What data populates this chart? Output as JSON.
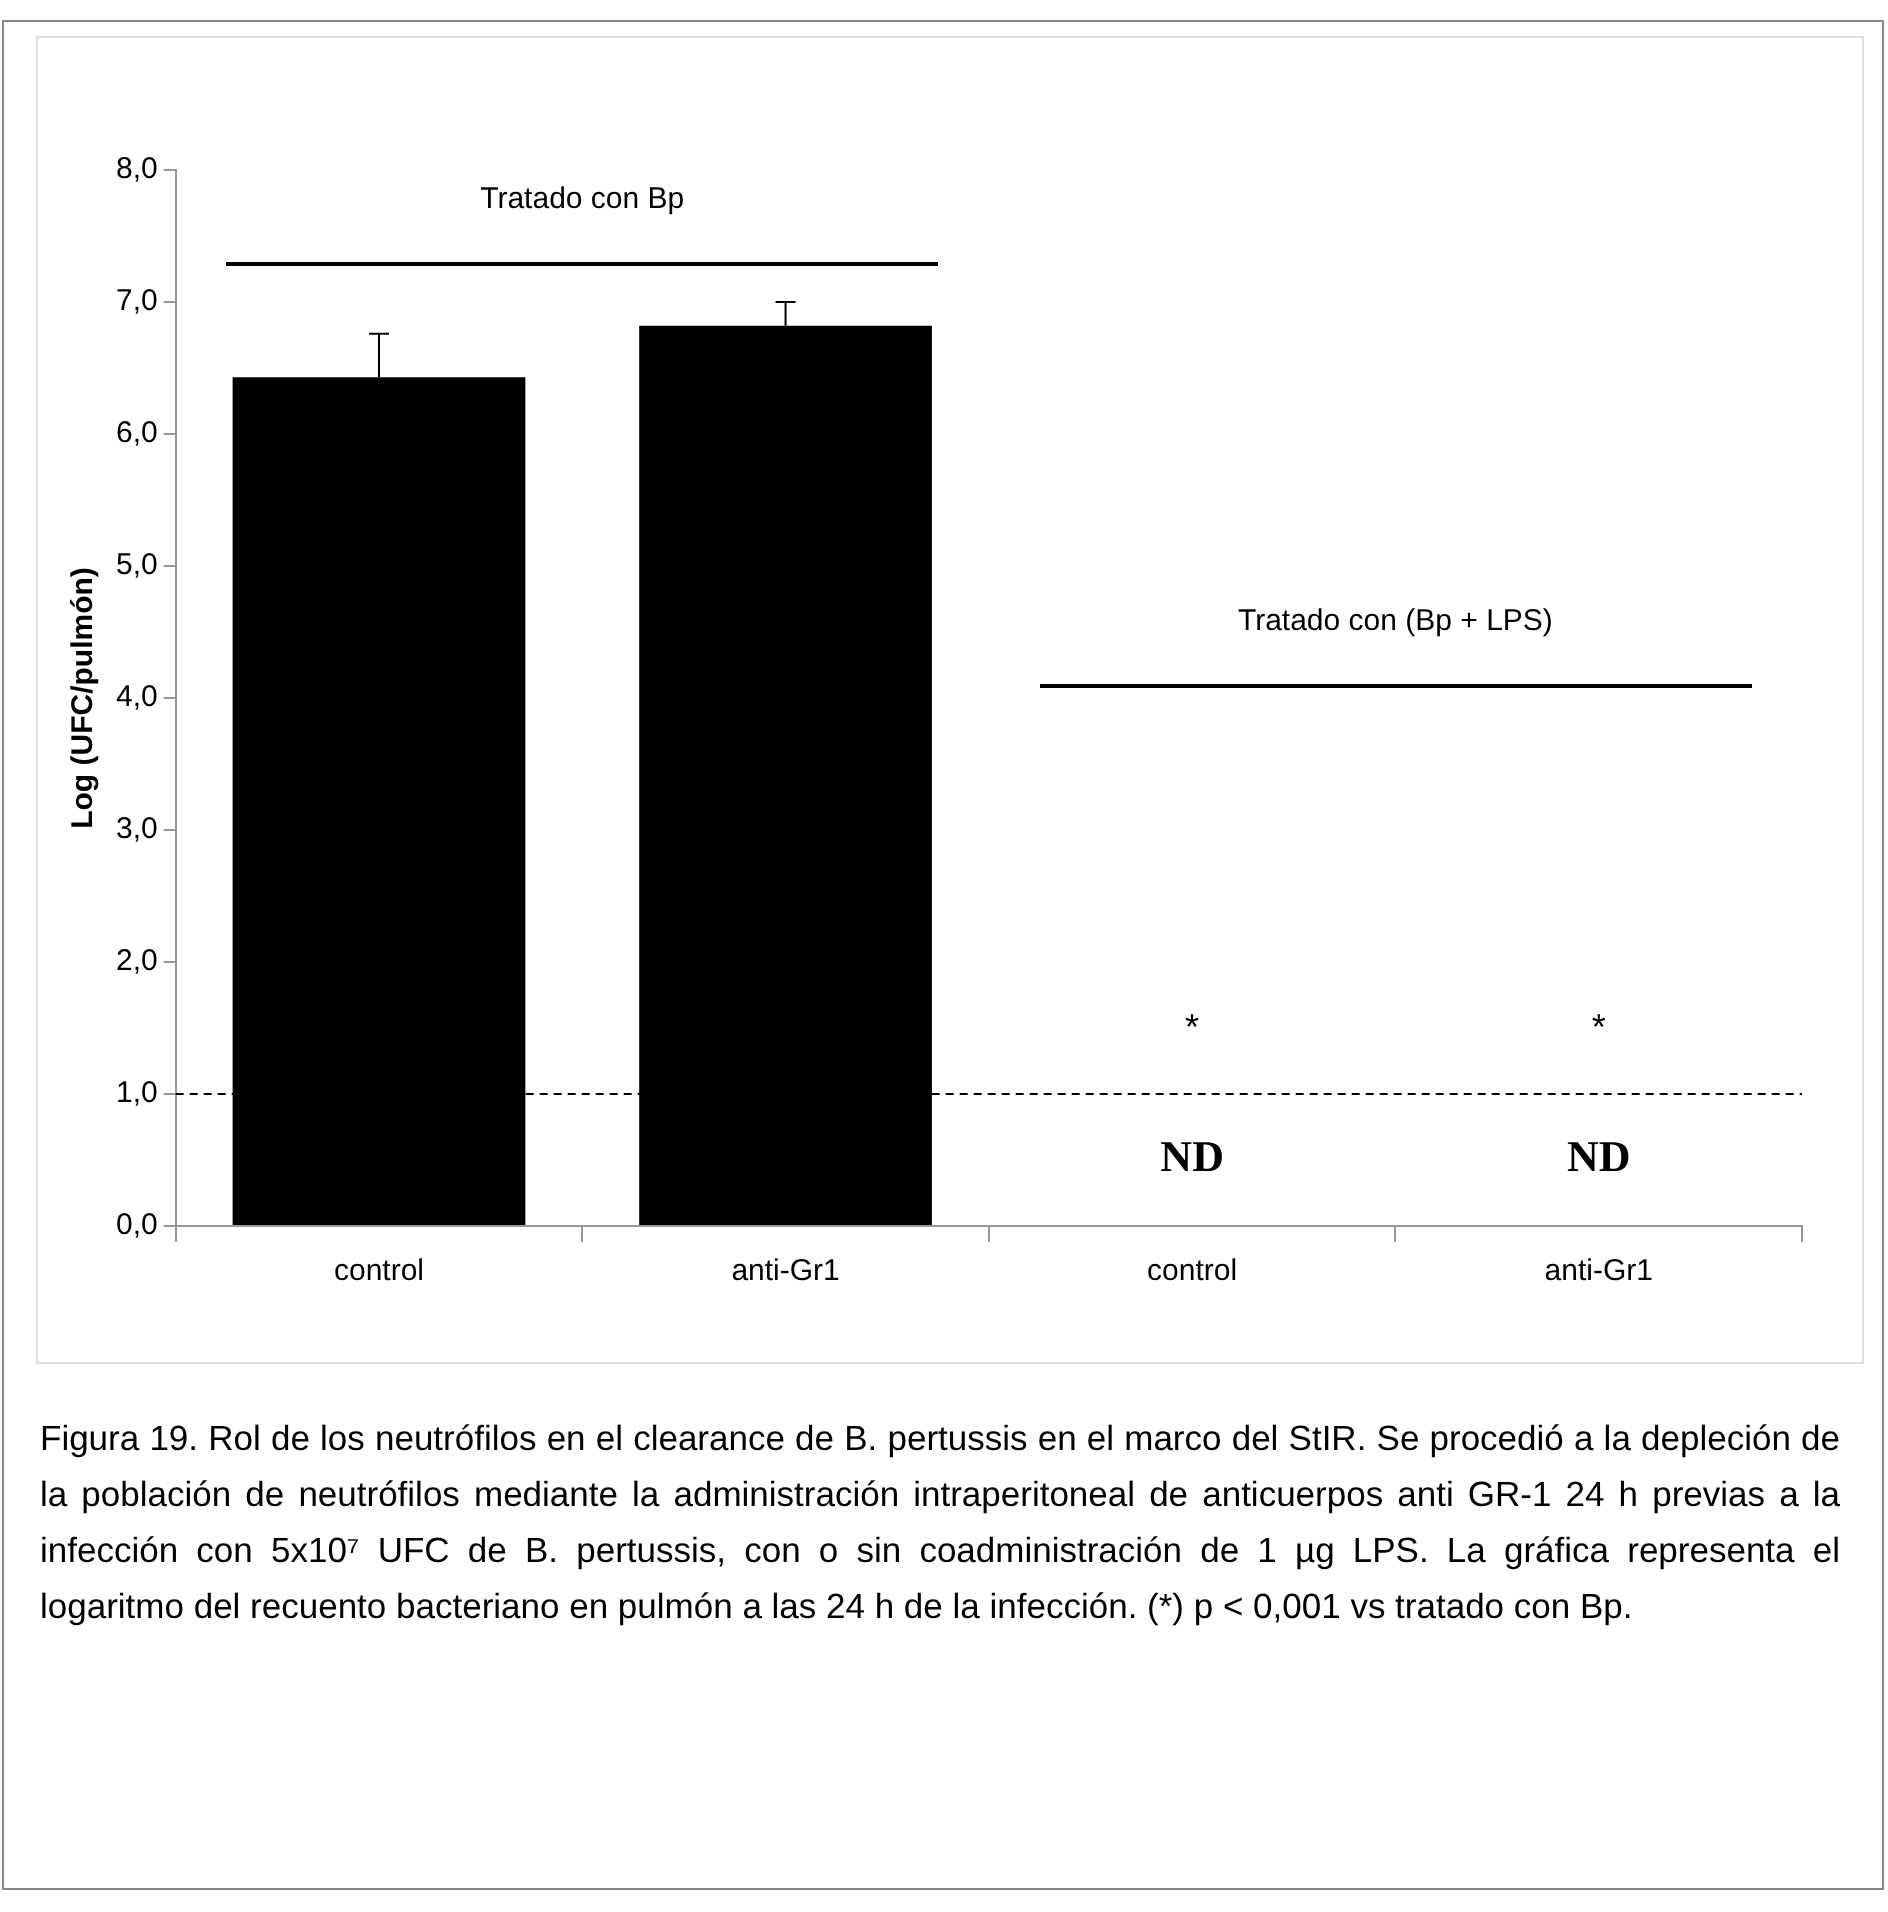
{
  "chart_data": {
    "type": "bar",
    "ylabel": "Log (UFC/pulmón)",
    "categories": [
      "control",
      "anti-Gr1",
      "control",
      "anti-Gr1"
    ],
    "values": [
      6.43,
      6.82,
      null,
      null
    ],
    "color": "#000000",
    "errors": [
      [
        6.43,
        6.76
      ],
      [
        6.82,
        7.0
      ],
      null,
      null
    ],
    "value_labels": [
      null,
      null,
      "ND",
      "ND"
    ],
    "ylim": [
      0,
      8
    ],
    "yticks": [
      {
        "value": 0,
        "label": "0,0"
      },
      {
        "value": 1,
        "label": "1,0"
      },
      {
        "value": 2,
        "label": "2,0"
      },
      {
        "value": 3,
        "label": "3,0"
      },
      {
        "value": 4,
        "label": "4,0"
      },
      {
        "value": 5,
        "label": "5,0"
      },
      {
        "value": 6,
        "label": "6,0"
      },
      {
        "value": 7,
        "label": "7,0"
      },
      {
        "value": 8,
        "label": "8,0"
      }
    ],
    "ref_lines": [
      {
        "axis": "y",
        "value": 1,
        "label": null,
        "color": "#000000",
        "line_style": "dashed"
      }
    ],
    "grid": false,
    "legend": false,
    "annotations": [
      "Tratado con Bp",
      "Tratado con (Bp + LPS)",
      "*",
      "*",
      "Figura 19. Rol de los neutrófilos en el clearance de B. pertussis en el marco del StIR. Se procedió a la depleción de la población de neutrófilos mediante la administración intraperitoneal de anticuerpos anti GR-1 24 h previas a la infección con 5x10⁷ UFC de B. pertussis, con o sin coadministración de 1 µg LPS. La gráfica representa el logaritmo del recuento bacteriano en pulmón a las 24 h de la infección. (*) p < 0,001 vs tratado con Bp."
    ]
  }
}
